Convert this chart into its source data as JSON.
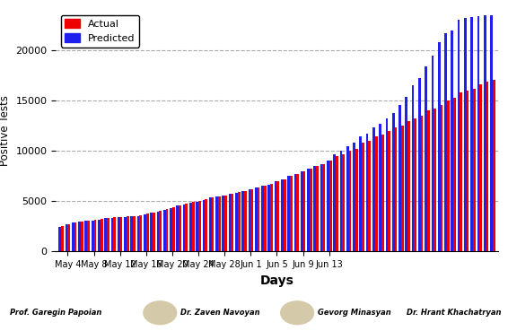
{
  "actual": [
    2500,
    2750,
    2900,
    3000,
    3100,
    3150,
    3250,
    3350,
    3400,
    3450,
    3500,
    3550,
    3600,
    3750,
    3900,
    4050,
    4200,
    4400,
    4600,
    4750,
    4900,
    5000,
    5200,
    5400,
    5500,
    5600,
    5750,
    5900,
    6050,
    6200,
    6400,
    6550,
    6700,
    7000,
    7200,
    7500,
    7700,
    8000,
    8200,
    8500,
    8700,
    9000,
    9500,
    9700,
    10000,
    10200,
    10800,
    11000,
    11400,
    11600,
    12000,
    12300,
    12500,
    13000,
    13200,
    13500,
    14000,
    14200,
    14600,
    15000,
    15300,
    15800,
    16000,
    16200,
    16600,
    16900,
    17100
  ],
  "predicted": [
    2450,
    2700,
    2850,
    2950,
    3050,
    3100,
    3200,
    3300,
    3350,
    3400,
    3450,
    3500,
    3550,
    3700,
    3850,
    4000,
    4150,
    4350,
    4550,
    4700,
    4850,
    4950,
    5150,
    5350,
    5450,
    5550,
    5700,
    5850,
    6000,
    6150,
    6350,
    6500,
    6650,
    7000,
    7200,
    7500,
    7700,
    8000,
    8200,
    8500,
    8700,
    9000,
    9700,
    10000,
    10500,
    10800,
    11400,
    11700,
    12300,
    12700,
    13200,
    13800,
    14600,
    15400,
    16500,
    17200,
    18400,
    19500,
    20800,
    21700,
    22000,
    23000,
    23200,
    23300,
    23400,
    23500,
    23500
  ],
  "xtick_labels": [
    "May 4",
    "May 8",
    "May 12",
    "May 16",
    "May 20",
    "May 24",
    "May 28",
    "Jun 1",
    "Jun 5",
    "Jun 9",
    "Jun 13"
  ],
  "xtick_positions": [
    1,
    5,
    9,
    13,
    17,
    21,
    25,
    29,
    33,
    37,
    41
  ],
  "ylabel": "Positive Tests",
  "xlabel": "Days",
  "ylim": [
    0,
    24000
  ],
  "yticks": [
    0,
    5000,
    10000,
    15000,
    20000
  ],
  "ytick_labels": [
    "0",
    "5000",
    "10000",
    "15000",
    "20000"
  ],
  "actual_color": "#EE0000",
  "predicted_color": "#2020EE",
  "bg_color": "#FFFFFF",
  "grid_color": "#AAAAAA",
  "bottom_text": [
    "Prof. Garegin Papoian",
    "Dr. Zaven Navoyan",
    "Gevorg Minasyan",
    "Dr. Hrant Khachatryan"
  ],
  "legend_labels": [
    "Actual",
    "Predicted"
  ],
  "n_bars": 67,
  "bar_width": 0.38
}
